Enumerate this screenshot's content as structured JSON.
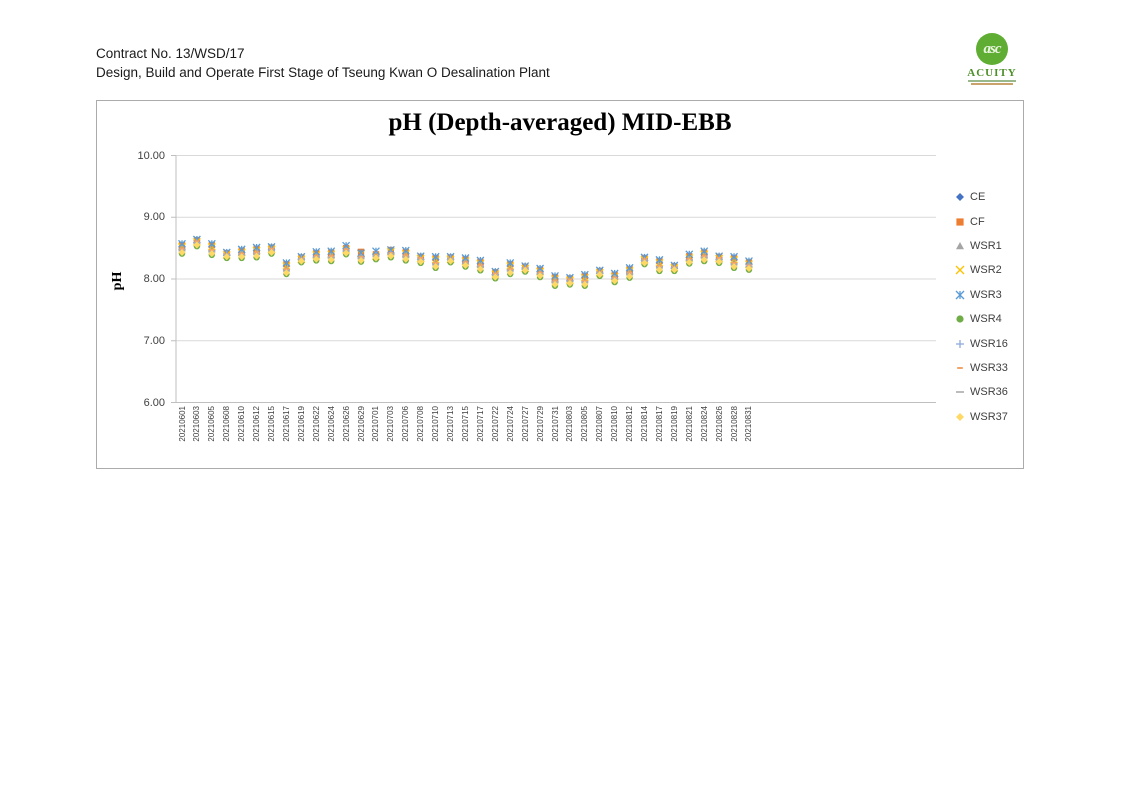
{
  "header": {
    "line1": "Contract No. 13/WSD/17",
    "line2": "Design, Build and Operate First Stage of Tseung Kwan O Desalination Plant"
  },
  "logo": {
    "monogram": "asc",
    "name": "ACUITY",
    "circle_color": "#5fae33",
    "name_color": "#4e8f2a"
  },
  "chart_data": {
    "type": "scatter",
    "title": "pH (Depth-averaged) MID-EBB",
    "xlabel": "",
    "ylabel": "pH",
    "ylim": [
      6.0,
      10.0
    ],
    "yticks": [
      {
        "value": 10.0,
        "label": "10.00"
      },
      {
        "value": 9.0,
        "label": "9.00"
      },
      {
        "value": 8.0,
        "label": "8.00"
      },
      {
        "value": 7.0,
        "label": "7.00"
      },
      {
        "value": 6.0,
        "label": "6.00"
      }
    ],
    "grid": true,
    "legend_position": "right",
    "gridline_color": "#d9d9d9",
    "axis_color": "#bfbfbf",
    "categories": [
      "20210601",
      "20210603",
      "20210605",
      "20210608",
      "20210610",
      "20210612",
      "20210615",
      "20210617",
      "20210619",
      "20210622",
      "20210624",
      "20210626",
      "20210629",
      "20210701",
      "20210703",
      "20210706",
      "20210708",
      "20210710",
      "20210713",
      "20210715",
      "20210717",
      "20210722",
      "20210724",
      "20210727",
      "20210729",
      "20210731",
      "20210803",
      "20210805",
      "20210807",
      "20210810",
      "20210812",
      "20210814",
      "20210817",
      "20210819",
      "20210821",
      "20210824",
      "20210826",
      "20210828",
      "20210831"
    ],
    "series": [
      {
        "name": "CE",
        "marker": "diamond",
        "color": "#4472C4",
        "values": [
          8.5,
          8.62,
          8.47,
          8.41,
          8.41,
          8.44,
          8.5,
          8.16,
          8.34,
          8.37,
          8.38,
          8.49,
          8.36,
          8.39,
          8.42,
          8.39,
          8.35,
          8.26,
          8.34,
          8.27,
          8.23,
          8.1,
          8.16,
          8.19,
          8.1,
          7.98,
          8.0,
          7.97,
          8.12,
          8.02,
          8.11,
          8.33,
          8.21,
          8.2,
          8.32,
          8.38,
          8.35,
          8.26,
          8.24
        ]
      },
      {
        "name": "CF",
        "marker": "square",
        "color": "#ED7D31",
        "values": [
          8.55,
          8.63,
          8.55,
          8.42,
          8.46,
          8.49,
          8.51,
          8.24,
          8.35,
          8.42,
          8.43,
          8.5,
          8.44,
          8.4,
          8.47,
          8.44,
          8.36,
          8.34,
          8.35,
          8.32,
          8.28,
          8.11,
          8.24,
          8.2,
          8.15,
          8.03,
          8.01,
          8.05,
          8.13,
          8.07,
          8.16,
          8.34,
          8.29,
          8.21,
          8.37,
          8.43,
          8.36,
          8.34,
          8.27
        ]
      },
      {
        "name": "WSR1",
        "marker": "triangle",
        "color": "#A5A5A5",
        "values": [
          8.45,
          8.57,
          8.43,
          8.38,
          8.38,
          8.39,
          8.45,
          8.12,
          8.31,
          8.34,
          8.33,
          8.44,
          8.32,
          8.36,
          8.39,
          8.34,
          8.3,
          8.22,
          8.31,
          8.24,
          8.18,
          8.05,
          8.12,
          8.16,
          8.07,
          7.93,
          7.95,
          7.93,
          8.09,
          7.99,
          8.06,
          8.28,
          8.17,
          8.17,
          8.29,
          8.33,
          8.3,
          8.22,
          8.19
        ]
      },
      {
        "name": "WSR2",
        "marker": "x",
        "color": "#FFC000",
        "values": [
          8.52,
          8.6,
          8.52,
          8.39,
          8.43,
          8.46,
          8.48,
          8.21,
          8.32,
          8.39,
          8.4,
          8.47,
          8.41,
          8.37,
          8.44,
          8.41,
          8.33,
          8.31,
          8.32,
          8.29,
          8.25,
          8.08,
          8.21,
          8.17,
          8.12,
          8.0,
          7.98,
          8.02,
          8.1,
          8.04,
          8.13,
          8.31,
          8.26,
          8.18,
          8.34,
          8.4,
          8.33,
          8.31,
          8.24
        ]
      },
      {
        "name": "WSR3",
        "marker": "asterisk",
        "color": "#5B9BD5",
        "values": [
          8.57,
          8.64,
          8.57,
          8.43,
          8.48,
          8.51,
          8.52,
          8.26,
          8.36,
          8.44,
          8.45,
          8.54,
          8.42,
          8.45,
          8.47,
          8.46,
          8.37,
          8.36,
          8.36,
          8.34,
          8.3,
          8.12,
          8.26,
          8.21,
          8.17,
          8.05,
          8.02,
          8.07,
          8.14,
          8.09,
          8.18,
          8.35,
          8.31,
          8.22,
          8.4,
          8.45,
          8.37,
          8.36,
          8.29
        ]
      },
      {
        "name": "WSR4",
        "marker": "circle",
        "color": "#70AD47",
        "values": [
          8.41,
          8.53,
          8.39,
          8.34,
          8.34,
          8.35,
          8.41,
          8.08,
          8.27,
          8.3,
          8.29,
          8.4,
          8.28,
          8.32,
          8.35,
          8.3,
          8.26,
          8.18,
          8.27,
          8.2,
          8.14,
          8.01,
          8.08,
          8.12,
          8.03,
          7.89,
          7.91,
          7.89,
          8.05,
          7.95,
          8.02,
          8.24,
          8.13,
          8.13,
          8.25,
          8.29,
          8.26,
          8.18,
          8.15
        ]
      },
      {
        "name": "WSR16",
        "marker": "plus",
        "color": "#8EA9DB",
        "values": [
          8.48,
          8.59,
          8.46,
          8.4,
          8.4,
          8.42,
          8.47,
          8.15,
          8.33,
          8.36,
          8.36,
          8.46,
          8.35,
          8.38,
          8.41,
          8.37,
          8.32,
          8.25,
          8.33,
          8.26,
          8.21,
          8.07,
          8.15,
          8.18,
          8.09,
          7.96,
          7.97,
          7.96,
          8.11,
          8.01,
          8.09,
          8.3,
          8.2,
          8.19,
          8.31,
          8.36,
          8.32,
          8.25,
          8.23
        ]
      },
      {
        "name": "WSR33",
        "marker": "dash-short",
        "color": "#F2A368",
        "values": [
          8.49,
          8.61,
          8.47,
          8.4,
          8.41,
          8.43,
          8.49,
          8.16,
          8.33,
          8.37,
          8.37,
          8.48,
          8.36,
          8.38,
          8.42,
          8.38,
          8.34,
          8.26,
          8.33,
          8.27,
          8.22,
          8.09,
          8.16,
          8.18,
          8.1,
          7.97,
          7.99,
          7.97,
          8.11,
          8.02,
          8.1,
          8.32,
          8.21,
          8.19,
          8.32,
          8.37,
          8.34,
          8.26,
          8.22
        ]
      },
      {
        "name": "WSR36",
        "marker": "dash",
        "color": "#ABABAB",
        "values": [
          8.46,
          8.58,
          8.44,
          8.39,
          8.39,
          8.4,
          8.46,
          8.13,
          8.32,
          8.35,
          8.34,
          8.45,
          8.33,
          8.37,
          8.4,
          8.35,
          8.31,
          8.23,
          8.32,
          8.25,
          8.19,
          8.06,
          8.13,
          8.17,
          8.08,
          7.94,
          7.96,
          7.94,
          8.1,
          8.0,
          8.07,
          8.29,
          8.18,
          8.18,
          8.3,
          8.34,
          8.31,
          8.23,
          8.2
        ]
      },
      {
        "name": "WSR37",
        "marker": "diamond",
        "color": "#FFD966",
        "values": [
          8.43,
          8.55,
          8.41,
          8.36,
          8.36,
          8.37,
          8.43,
          8.1,
          8.29,
          8.32,
          8.31,
          8.42,
          8.3,
          8.34,
          8.37,
          8.32,
          8.28,
          8.2,
          8.29,
          8.22,
          8.16,
          8.03,
          8.1,
          8.14,
          8.05,
          7.91,
          7.93,
          7.91,
          8.07,
          7.97,
          8.04,
          8.26,
          8.15,
          8.15,
          8.27,
          8.31,
          8.28,
          8.2,
          8.17
        ]
      }
    ]
  }
}
